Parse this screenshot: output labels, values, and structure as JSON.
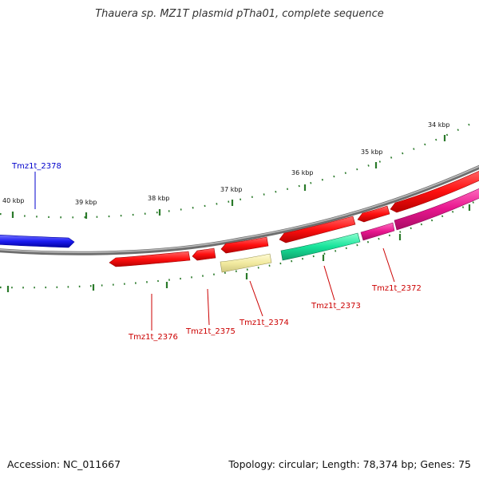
{
  "title": "Thauera sp. MZ1T plasmid pTha01, complete sequence",
  "footer": {
    "accession": "Accession: NC_011667",
    "summary": "Topology: circular; Length: 78,374 bp; Genes: 75"
  },
  "colors": {
    "backbone": "#7a7a7a",
    "tick": "#2a7a2a",
    "forward_gene": "#ff1a1a",
    "pink_gene": "#e8168e",
    "teal_gene": "#17e39a",
    "yellow_gene": "#f2eaa0",
    "blue_gene": "#1c1cf2",
    "label_red": "#cc0000",
    "label_blue": "#0000cc"
  },
  "tick_labels": [
    "34 kbp",
    "35 kbp",
    "36 kbp",
    "37 kbp",
    "38 kbp",
    "39 kbp",
    "40 kbp"
  ],
  "gene_labels": [
    {
      "id": "Tmz1t_2378",
      "color": "blue"
    },
    {
      "id": "Tmz1t_2372",
      "color": "red"
    },
    {
      "id": "Tmz1t_2373",
      "color": "red"
    },
    {
      "id": "Tmz1t_2374",
      "color": "red"
    },
    {
      "id": "Tmz1t_2375",
      "color": "red"
    },
    {
      "id": "Tmz1t_2376",
      "color": "red"
    }
  ]
}
